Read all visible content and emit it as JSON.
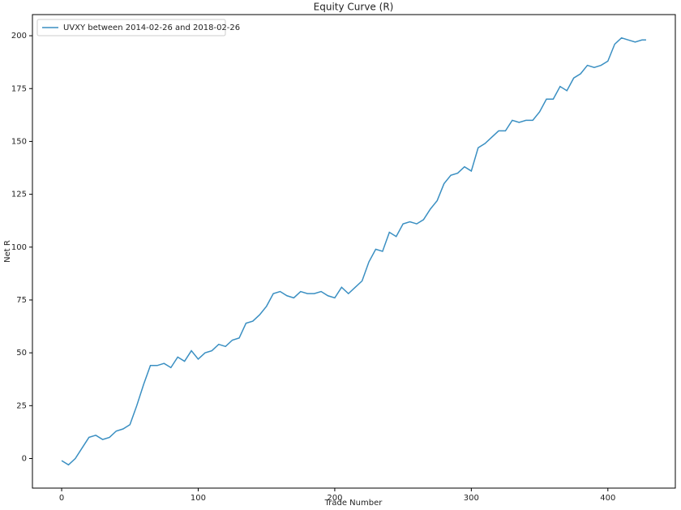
{
  "chart_data": {
    "type": "line",
    "title": "Equity Curve (R)",
    "x_label": "Trade Number",
    "y_label": "Net R",
    "x": [
      0,
      5,
      10,
      15,
      20,
      25,
      30,
      35,
      40,
      45,
      50,
      55,
      60,
      65,
      70,
      75,
      80,
      85,
      90,
      95,
      100,
      105,
      110,
      115,
      120,
      125,
      130,
      135,
      140,
      145,
      150,
      155,
      160,
      165,
      170,
      175,
      180,
      185,
      190,
      195,
      200,
      205,
      210,
      215,
      220,
      225,
      230,
      235,
      240,
      245,
      250,
      255,
      260,
      265,
      270,
      275,
      280,
      285,
      290,
      295,
      300,
      305,
      310,
      315,
      320,
      325,
      330,
      335,
      340,
      345,
      350,
      355,
      360,
      365,
      370,
      375,
      380,
      385,
      390,
      395,
      400,
      405,
      410,
      415,
      420,
      425,
      428
    ],
    "series": [
      {
        "name": "UVXY between 2014-02-26 and 2018-02-26",
        "color": "#3a8fc2",
        "values": [
          -1,
          -3,
          0,
          5,
          10,
          11,
          9,
          10,
          13,
          14,
          16,
          25,
          35,
          44,
          44,
          45,
          43,
          48,
          46,
          51,
          47,
          50,
          51,
          54,
          53,
          56,
          57,
          64,
          65,
          68,
          72,
          78,
          79,
          77,
          76,
          79,
          78,
          78,
          79,
          77,
          76,
          81,
          78,
          81,
          84,
          93,
          99,
          98,
          107,
          105,
          111,
          112,
          111,
          113,
          118,
          122,
          130,
          134,
          135,
          138,
          136,
          147,
          149,
          152,
          155,
          155,
          160,
          159,
          160,
          160,
          164,
          170,
          170,
          176,
          174,
          180,
          182,
          186,
          185,
          186,
          188,
          196,
          199,
          198,
          197,
          198,
          198
        ]
      }
    ],
    "xlim": [
      -21.4,
      449.4
    ],
    "ylim": [
      -14,
      210
    ],
    "xticks": [
      0,
      100,
      200,
      300,
      400
    ],
    "yticks": [
      0,
      25,
      50,
      75,
      100,
      125,
      150,
      175,
      200
    ],
    "legend": "upper left",
    "grid": false
  }
}
